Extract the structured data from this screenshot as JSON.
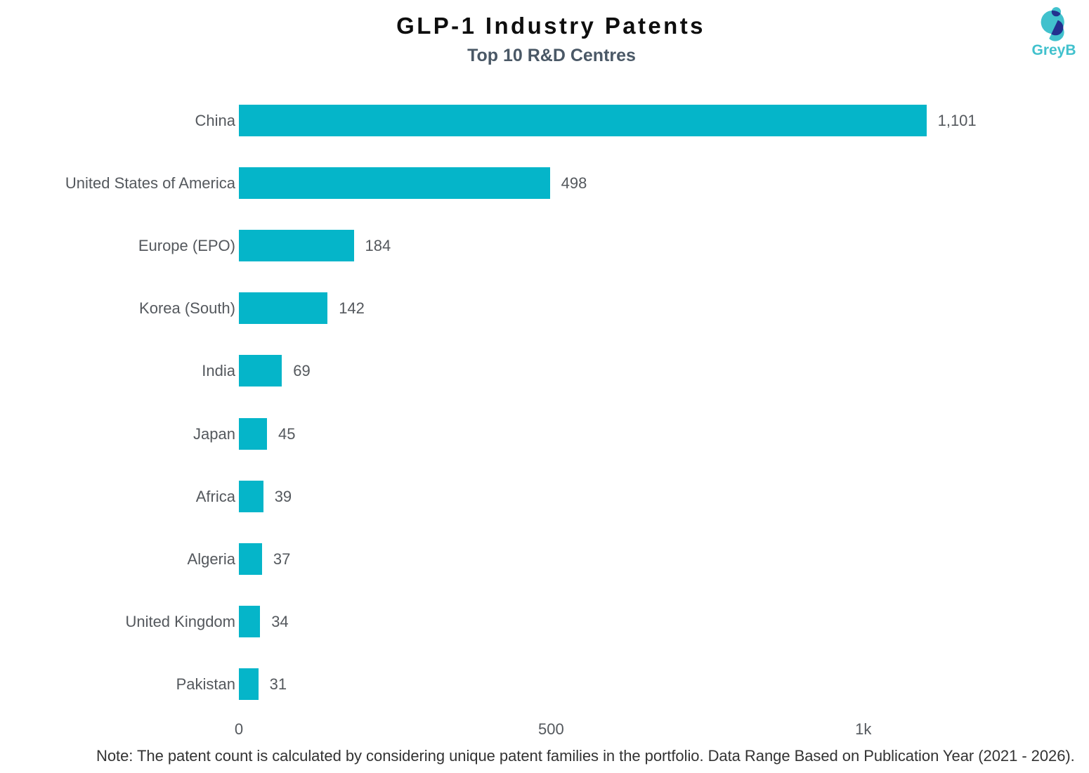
{
  "header": {
    "title": "GLP-1 Industry Patents",
    "subtitle": "Top 10 R&D Centres"
  },
  "logo": {
    "text": "GreyB",
    "teal": "#41c1cd",
    "navy": "#23308f"
  },
  "chart_data": {
    "type": "bar",
    "orientation": "horizontal",
    "title": "GLP-1 Industry Patents",
    "subtitle": "Top 10 R&D Centres",
    "categories": [
      "China",
      "United States of America",
      "Europe (EPO)",
      "Korea (South)",
      "India",
      "Japan",
      "Africa",
      "Algeria",
      "United Kingdom",
      "Pakistan"
    ],
    "values": [
      1101,
      498,
      184,
      142,
      69,
      45,
      39,
      37,
      34,
      31
    ],
    "value_labels": [
      "1,101",
      "498",
      "184",
      "142",
      "69",
      "45",
      "39",
      "37",
      "34",
      "31"
    ],
    "bar_color": "#05b5c9",
    "xlim": [
      0,
      1000
    ],
    "x_ticks": [
      {
        "value": 0,
        "label": "0"
      },
      {
        "value": 500,
        "label": "500"
      },
      {
        "value": 1000,
        "label": "1k"
      }
    ],
    "grid": false,
    "legend": false,
    "xlabel": "",
    "ylabel": ""
  },
  "note": "Note: The patent count is calculated by considering unique patent families in the portfolio. Data Range Based on Publication Year (2021 - 2026)."
}
